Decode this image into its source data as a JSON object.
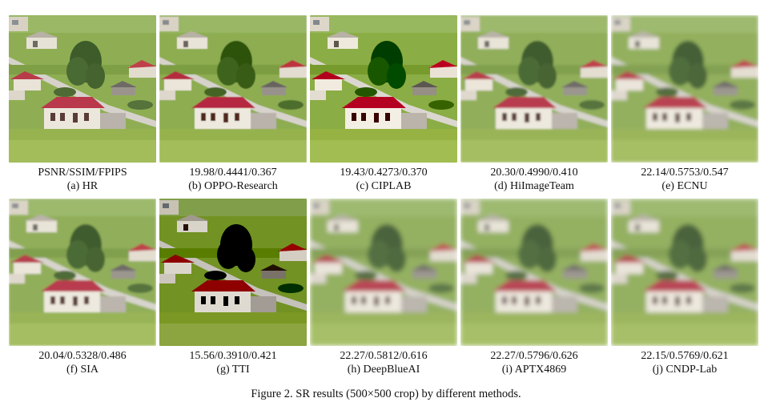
{
  "panels": [
    {
      "metric": "PSNR/SSIM/FPIPS",
      "label": "(a) HR",
      "style": "hr"
    },
    {
      "metric": "19.98/0.4441/0.367",
      "label": "(b) OPPO-Research",
      "style": "sharp"
    },
    {
      "metric": "19.43/0.4273/0.370",
      "label": "(c) CIPLAB",
      "style": "crisp"
    },
    {
      "metric": "20.30/0.4990/0.410",
      "label": "(d) HiImageTeam",
      "style": "smooth"
    },
    {
      "metric": "22.14/0.5753/0.547",
      "label": "(e) ECNU",
      "style": "blur"
    },
    {
      "metric": "20.04/0.5328/0.486",
      "label": "(f) SIA",
      "style": "smooth"
    },
    {
      "metric": "15.56/0.3910/0.421",
      "label": "(g) TTI",
      "style": "dark"
    },
    {
      "metric": "22.27/0.5812/0.616",
      "label": "(h) DeepBlueAI",
      "style": "heavy"
    },
    {
      "metric": "22.27/0.5796/0.626",
      "label": "(i) APTX4869",
      "style": "heavy"
    },
    {
      "metric": "22.15/0.5769/0.621",
      "label": "(j) CNDP-Lab",
      "style": "heavy"
    }
  ],
  "caption": "Figure 2. SR results (500×500 crop) by different methods."
}
